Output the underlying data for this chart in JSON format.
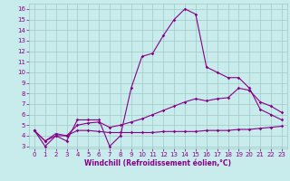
{
  "x": [
    0,
    1,
    2,
    3,
    4,
    5,
    6,
    7,
    8,
    9,
    10,
    11,
    12,
    13,
    14,
    15,
    16,
    17,
    18,
    19,
    20,
    21,
    22,
    23
  ],
  "line1": [
    4.5,
    3.0,
    4.0,
    3.5,
    5.5,
    5.5,
    5.5,
    3.0,
    4.0,
    8.5,
    11.5,
    11.8,
    13.5,
    15.0,
    16.0,
    15.5,
    10.5,
    10.0,
    9.5,
    9.5,
    8.5,
    6.5,
    6.0,
    5.5
  ],
  "line2": [
    4.5,
    3.5,
    4.2,
    4.0,
    5.0,
    5.2,
    5.3,
    4.8,
    5.0,
    5.3,
    5.6,
    6.0,
    6.4,
    6.8,
    7.2,
    7.5,
    7.3,
    7.5,
    7.6,
    8.5,
    8.3,
    7.2,
    6.8,
    6.2
  ],
  "line3": [
    4.5,
    3.5,
    4.0,
    4.0,
    4.5,
    4.5,
    4.4,
    4.3,
    4.3,
    4.3,
    4.3,
    4.3,
    4.4,
    4.4,
    4.4,
    4.4,
    4.5,
    4.5,
    4.5,
    4.6,
    4.6,
    4.7,
    4.8,
    4.9
  ],
  "line_color": "#880088",
  "bg_color": "#c8ecec",
  "grid_color": "#a0c8c8",
  "xlabel": "Windchill (Refroidissement éolien,°C)",
  "xlim": [
    -0.5,
    23.5
  ],
  "ylim": [
    2.8,
    16.5
  ],
  "yticks": [
    3,
    4,
    5,
    6,
    7,
    8,
    9,
    10,
    11,
    12,
    13,
    14,
    15,
    16
  ],
  "xticks": [
    0,
    1,
    2,
    3,
    4,
    5,
    6,
    7,
    8,
    9,
    10,
    11,
    12,
    13,
    14,
    15,
    16,
    17,
    18,
    19,
    20,
    21,
    22,
    23
  ],
  "tick_fontsize": 5.0,
  "xlabel_fontsize": 5.5,
  "marker_size": 1.8,
  "linewidth": 0.8
}
